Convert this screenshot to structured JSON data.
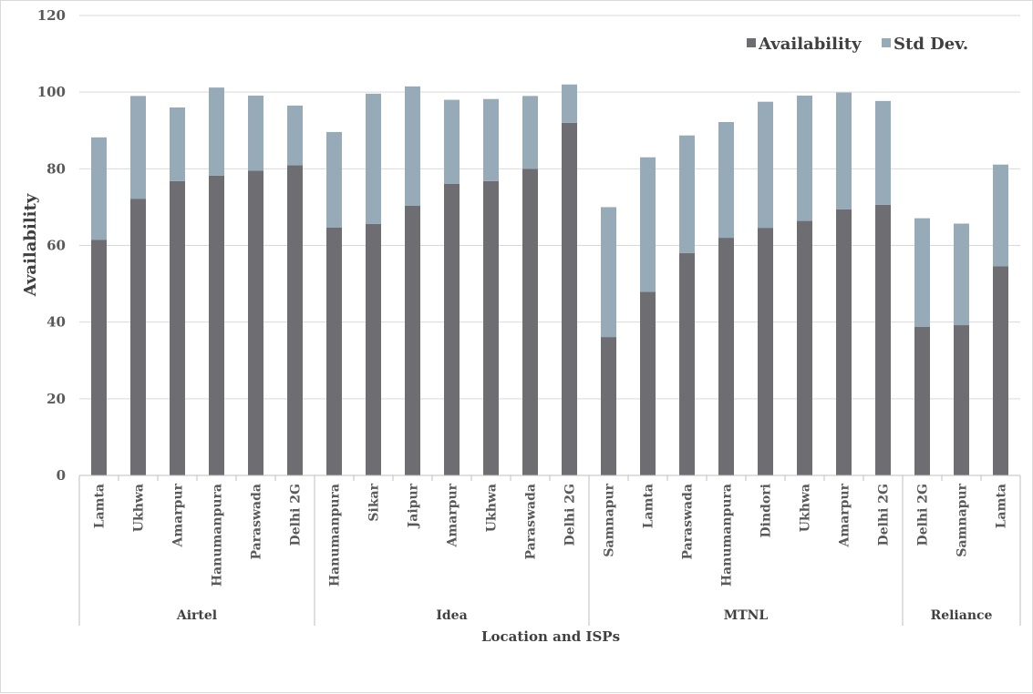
{
  "chart_data": {
    "type": "bar",
    "stacked": true,
    "title": "",
    "xlabel": "Location and ISPs",
    "ylabel": "Availability",
    "ylim": [
      0,
      120
    ],
    "yticks": [
      0,
      20,
      40,
      60,
      80,
      100,
      120
    ],
    "grid": true,
    "legend_position": "top-right",
    "groups": [
      {
        "name": "Airtel",
        "categories": [
          "Lamta",
          "Ukhwa",
          "Amarpur",
          "Hanumanpura",
          "Paraswada",
          "Delhi 2G"
        ]
      },
      {
        "name": "Idea",
        "categories": [
          "Hanumanpura",
          "Sikar",
          "Jaipur",
          "Amarpur",
          "Ukhwa",
          "Paraswada",
          "Delhi 2G"
        ]
      },
      {
        "name": "MTNL",
        "categories": [
          "Samnapur",
          "Lamta",
          "Paraswada",
          "Hanumanpura",
          "Dindori",
          "Ukhwa",
          "Amarpur",
          "Delhi 2G"
        ]
      },
      {
        "name": "Reliance",
        "categories": [
          "Delhi 2G",
          "Samnapur",
          "Lamta"
        ]
      }
    ],
    "series": [
      {
        "name": "Availability",
        "color": "#6e6d72",
        "values": [
          61.5,
          72.2,
          76.8,
          78.2,
          79.5,
          80.9,
          64.7,
          65.6,
          70.4,
          76.1,
          76.8,
          80.0,
          92.0,
          36.1,
          47.9,
          58.0,
          62.0,
          64.6,
          66.4,
          69.4,
          70.6,
          38.8,
          39.2,
          54.6
        ]
      },
      {
        "name": "Std Dev.",
        "color": "#97aab8",
        "values": [
          26.7,
          26.8,
          19.2,
          23.0,
          19.6,
          15.6,
          24.9,
          34.0,
          31.1,
          21.9,
          21.4,
          19.0,
          10.0,
          33.9,
          35.1,
          30.7,
          30.2,
          32.9,
          32.7,
          30.5,
          27.1,
          28.3,
          26.5,
          26.5
        ]
      }
    ]
  }
}
